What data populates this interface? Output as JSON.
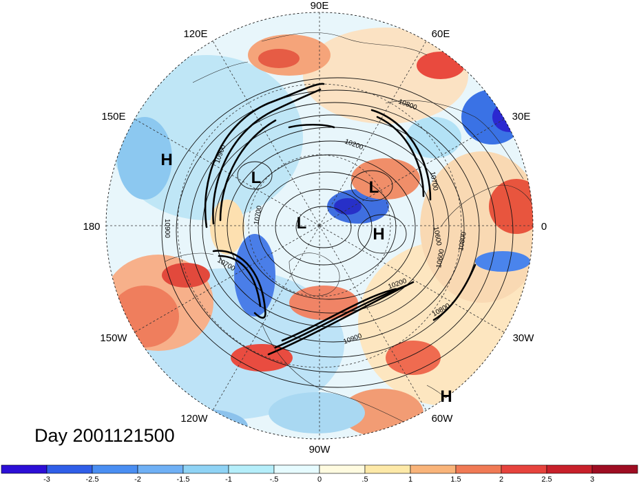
{
  "title": "Day 2001121500",
  "longitude_labels": [
    "90E",
    "60E",
    "30E",
    "0",
    "30W",
    "60W",
    "90W",
    "120W",
    "150W",
    "180",
    "150E",
    "120E"
  ],
  "pressure_centers": [
    {
      "type": "H",
      "lon_label": "150E-120E sector"
    },
    {
      "type": "L",
      "lon_label": "near 110E"
    },
    {
      "type": "L",
      "lon_label": "near pole"
    },
    {
      "type": "L",
      "lon_label": "near 45E"
    },
    {
      "type": "H",
      "lon_label": "near 20E"
    },
    {
      "type": "H",
      "lon_label": "near 60W"
    }
  ],
  "contour_labels": [
    "10900",
    "10800",
    "10700",
    "10200",
    "10700",
    "10600",
    "10800",
    "10600",
    "10800",
    "10200",
    "10900",
    "10700",
    "10900"
  ],
  "colorbar": {
    "ticks": [
      "-3",
      "-2.5",
      "-2",
      "-1.5",
      "-1",
      "-.5",
      "0",
      ".5",
      "1",
      "1.5",
      "2",
      "2.5",
      "3"
    ],
    "colors": [
      "#2c0fd6",
      "#2f5ee8",
      "#4a8ef2",
      "#6fb0f5",
      "#8fd3f5",
      "#b5eefa",
      "#e6fbff",
      "#fffbe0",
      "#fde9a8",
      "#f9b47a",
      "#f07a55",
      "#e6433d",
      "#c8202a",
      "#9e0d22"
    ]
  }
}
